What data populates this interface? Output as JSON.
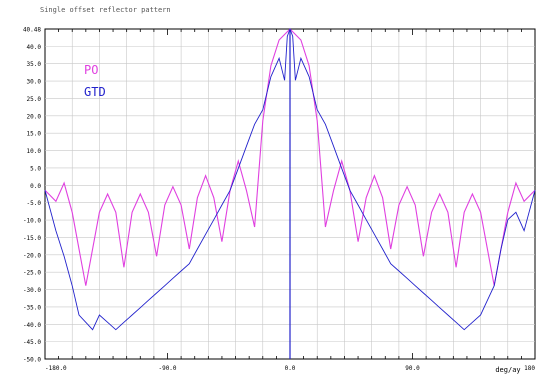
{
  "chart_data": {
    "type": "line",
    "title": "Single offset reflector pattern",
    "xlabel": "deg/ay",
    "ylabel": "",
    "xlim": [
      -180,
      180
    ],
    "ylim": [
      -50,
      40
    ],
    "x_ticks": [
      -180,
      -90,
      0,
      90,
      180
    ],
    "x_tick_labels": [
      "-180.0",
      "-90.0",
      "0.0",
      "90.0",
      "180"
    ],
    "y_tick_labels": [
      "40.48",
      "40.0",
      "35.0",
      "30.0",
      "25.0",
      "20.0",
      "15.0",
      "10.0",
      "5.0",
      "0.0",
      "-5.0",
      "-10.0",
      "-15.0",
      "-20.0",
      "-25.0",
      "-30.0",
      "-35.0",
      "-40.0",
      "-45.0",
      "-50.0"
    ],
    "grid": true,
    "legend_position": "top-left",
    "colors": {
      "PO": "#e040e0",
      "GTD": "#2222cc",
      "grid": "#c8c8c8",
      "axis": "#000000"
    },
    "series": [
      {
        "name": "PO",
        "x": [
          -180,
          -172,
          -166,
          -160,
          -155,
          -150,
          -145,
          -140,
          -134,
          -128,
          -122,
          -116,
          -110,
          -104,
          -98,
          -92,
          -86,
          -80,
          -74,
          -68,
          -62,
          -56,
          -50,
          -44,
          -38,
          -32,
          -26,
          -20,
          -14,
          -8,
          0,
          8,
          14,
          20,
          26,
          32,
          38,
          44,
          50,
          56,
          62,
          68,
          74,
          80,
          86,
          92,
          98,
          104,
          110,
          116,
          122,
          128,
          134,
          140,
          145,
          150,
          155,
          160,
          166,
          172,
          180
        ],
        "y": [
          -4,
          -7,
          -2,
          -10,
          -20,
          -30,
          -20,
          -10,
          -5,
          -10,
          -25,
          -10,
          -5,
          -10,
          -22,
          -8,
          -3,
          -8,
          -20,
          -6,
          0,
          -6,
          -18,
          -4,
          4,
          -4,
          -14,
          15,
          30,
          37,
          40,
          37,
          30,
          15,
          -14,
          -4,
          4,
          -4,
          -18,
          -6,
          0,
          -6,
          -20,
          -8,
          -3,
          -8,
          -22,
          -10,
          -5,
          -10,
          -25,
          -10,
          -5,
          -10,
          -20,
          -30,
          -20,
          -10,
          -2,
          -7,
          -4
        ]
      },
      {
        "name": "GTD",
        "x": [
          -180,
          -172,
          -166,
          -160,
          -155,
          -150,
          -145,
          -140,
          -134,
          -128,
          -122,
          -116,
          -110,
          -104,
          -98,
          -92,
          -86,
          -80,
          -74,
          -68,
          -62,
          -56,
          -50,
          -44,
          -38,
          -32,
          -26,
          -20,
          -14,
          -8,
          -4,
          -2,
          0,
          2,
          4,
          8,
          14,
          20,
          26,
          32,
          38,
          44,
          50,
          56,
          62,
          68,
          74,
          80,
          86,
          92,
          98,
          104,
          110,
          116,
          122,
          128,
          134,
          140,
          145,
          150,
          155,
          160,
          166,
          172,
          180
        ],
        "y": [
          -4,
          -15,
          -22,
          -30,
          -38,
          -40,
          -42,
          -38,
          -40,
          -42,
          -40,
          -38,
          -36,
          -34,
          -32,
          -30,
          -28,
          -26,
          -24,
          -20,
          -16,
          -12,
          -8,
          -4,
          2,
          8,
          14,
          18,
          27,
          32,
          26,
          38,
          40,
          38,
          26,
          32,
          27,
          18,
          14,
          8,
          2,
          -4,
          -8,
          -12,
          -16,
          -20,
          -24,
          -26,
          -28,
          -30,
          -32,
          -34,
          -36,
          -38,
          -40,
          -42,
          -40,
          -38,
          -34,
          -30,
          -20,
          -12,
          -10,
          -15,
          -4
        ]
      }
    ]
  }
}
